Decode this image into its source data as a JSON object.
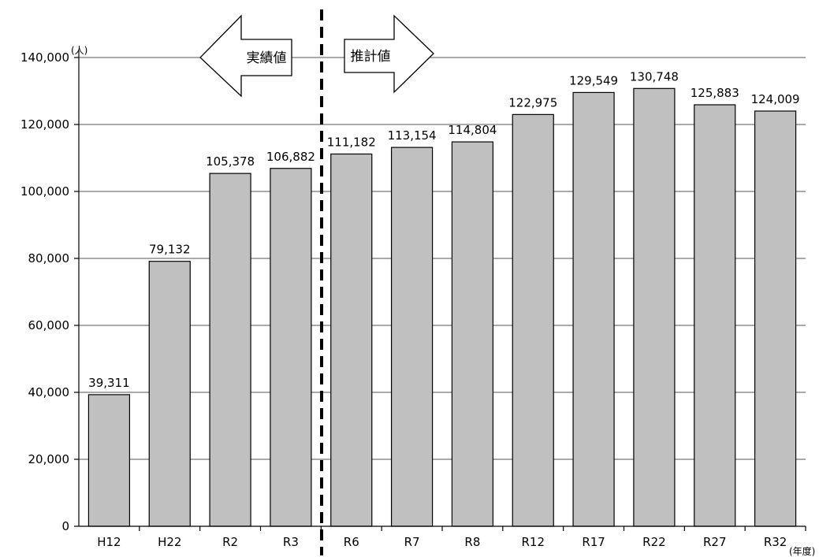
{
  "chart_data": {
    "type": "bar",
    "categories": [
      "H12",
      "H22",
      "R2",
      "R3",
      "R6",
      "R7",
      "R8",
      "R12",
      "R17",
      "R22",
      "R27",
      "R32"
    ],
    "values": [
      39311,
      79132,
      105378,
      106882,
      111182,
      113154,
      114804,
      122975,
      129549,
      130748,
      125883,
      124009
    ],
    "value_labels": [
      "39,311",
      "79,132",
      "105,378",
      "106,882",
      "111,182",
      "113,154",
      "114,804",
      "122,975",
      "129,549",
      "130,748",
      "125,883",
      "124,009"
    ],
    "y_tick_labels": [
      "0",
      "20,000",
      "40,000",
      "60,000",
      "80,000",
      "100,000",
      "120,000",
      "140,000"
    ],
    "ylim": [
      0,
      140000
    ],
    "y_unit": "(人)",
    "x_unit": "(年度)",
    "actual_label": "実績値",
    "forecast_label": "推計値",
    "split_after_category": "R3",
    "grid": true,
    "bar_color": "#c0c0c0"
  }
}
